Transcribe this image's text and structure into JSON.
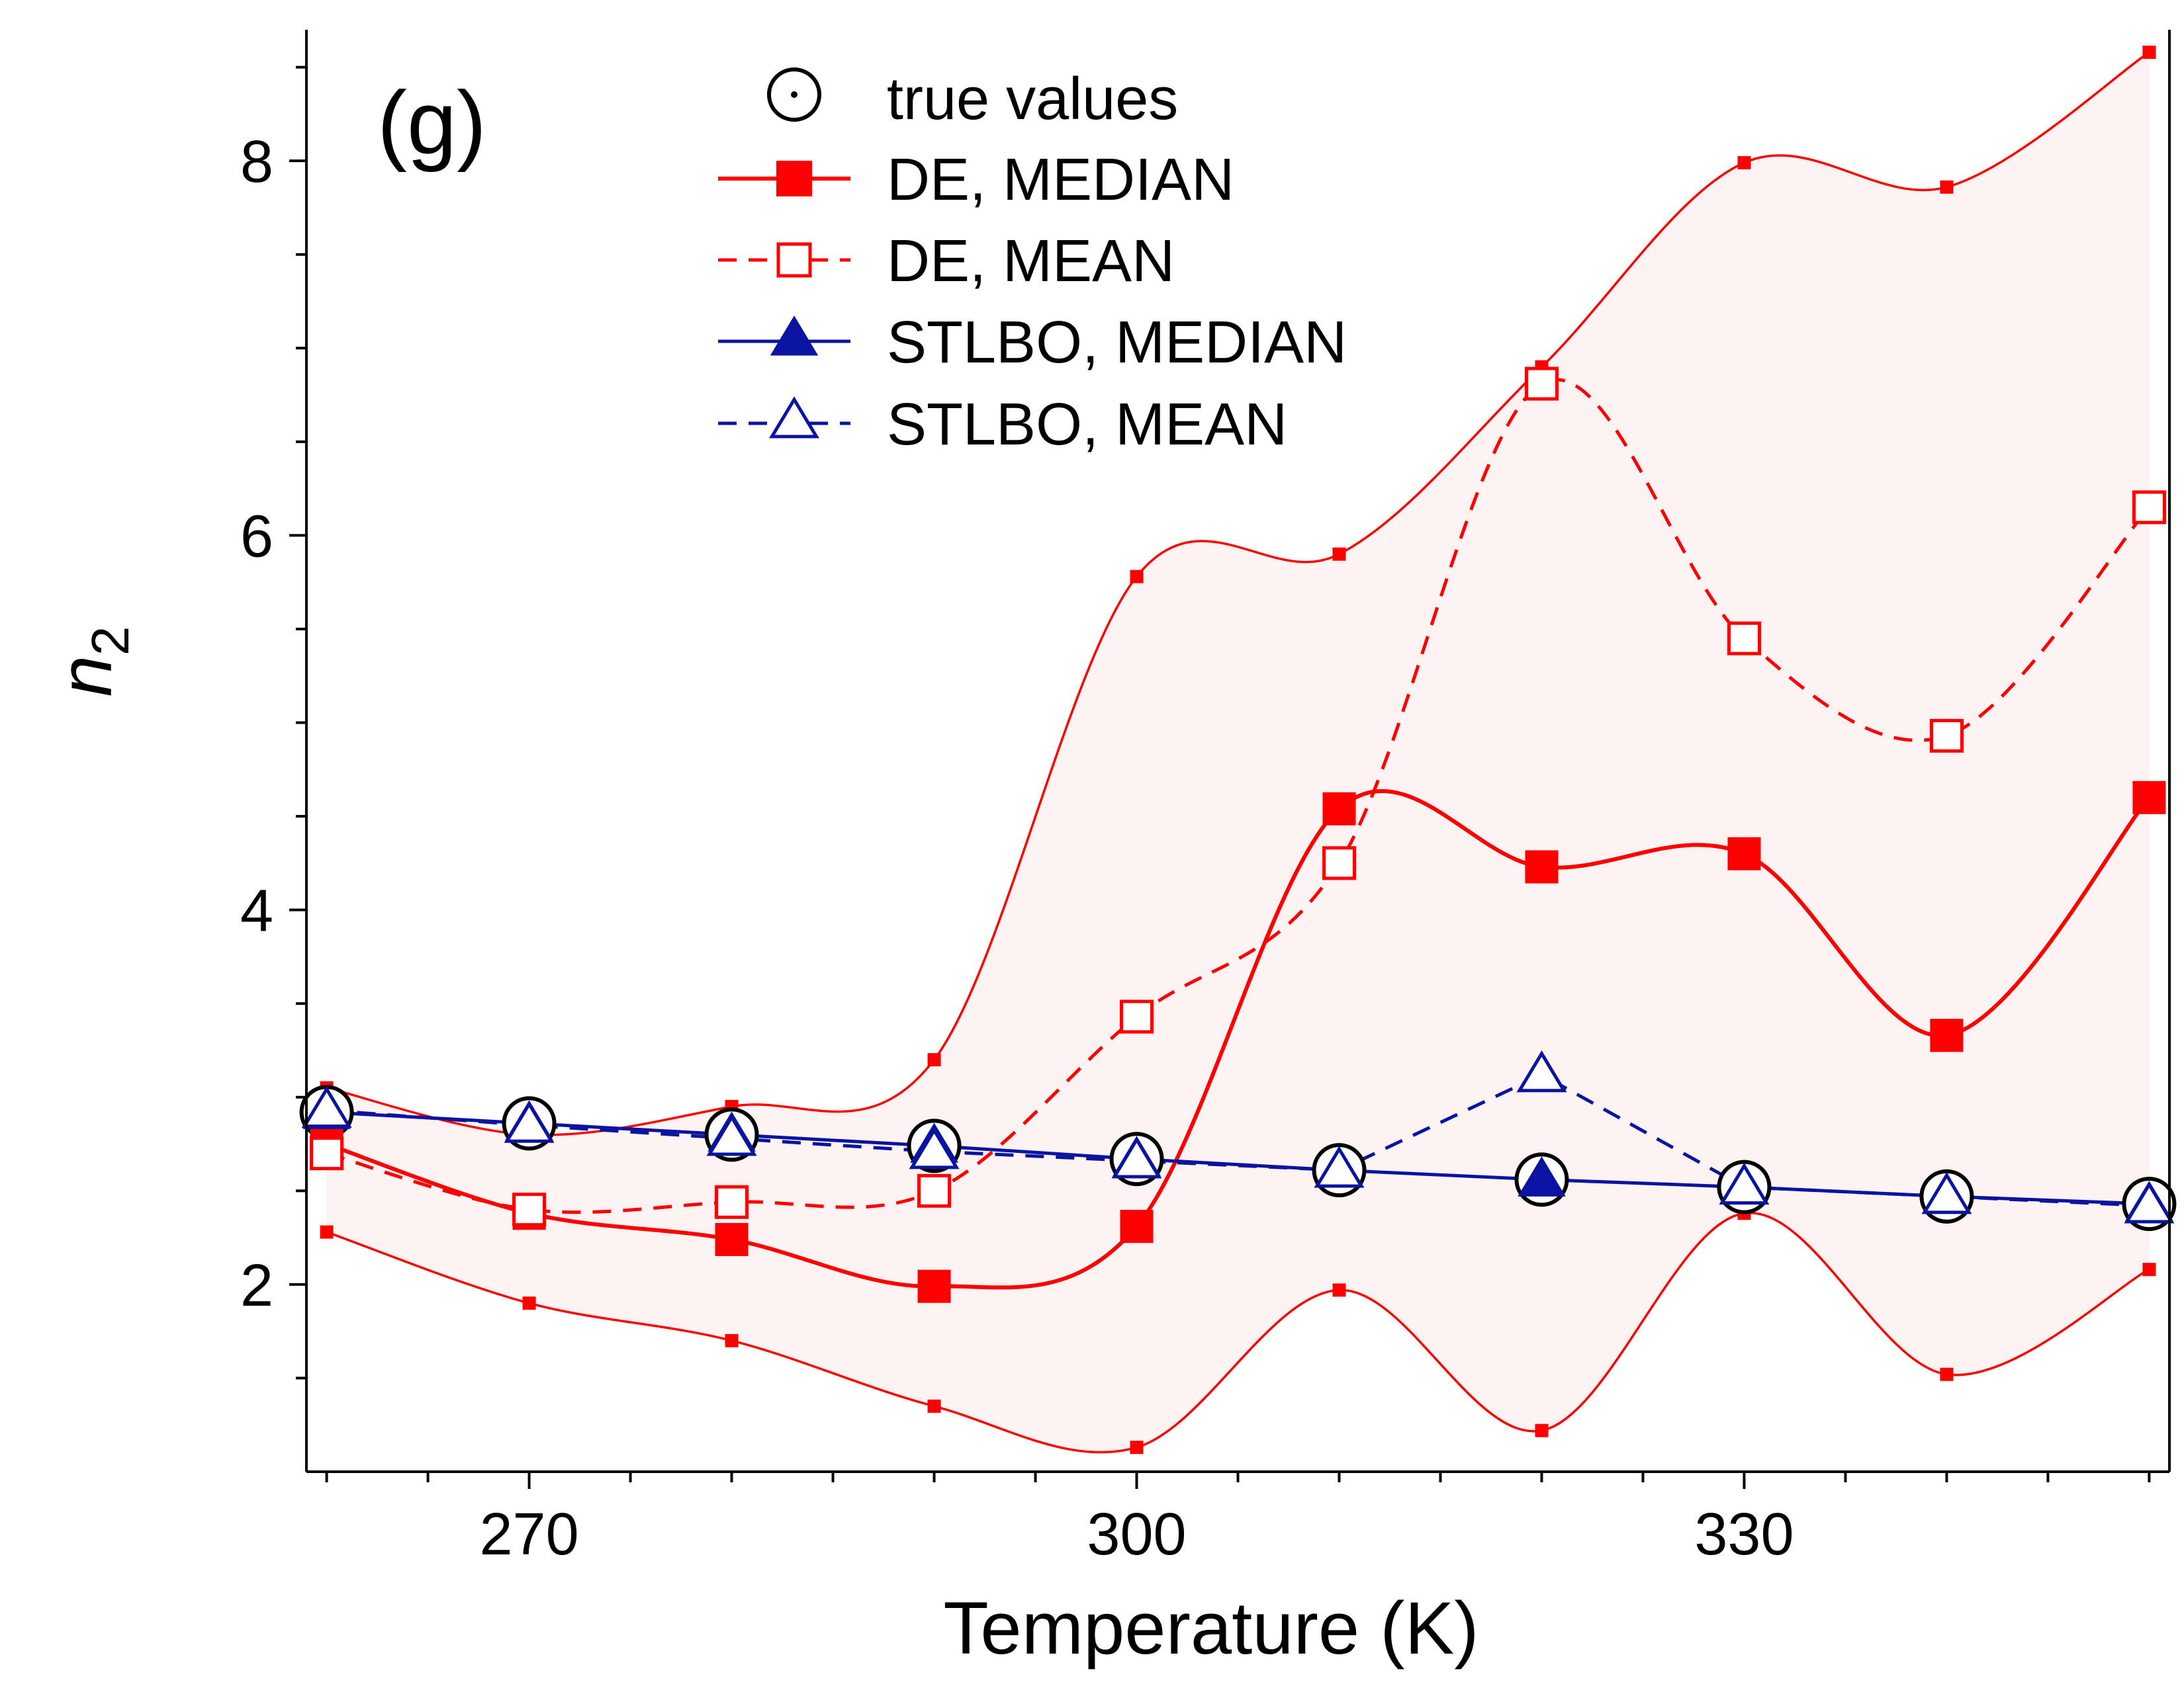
{
  "chart_data": {
    "type": "line",
    "panel_label": "(g)",
    "xlabel": "Temperature (K)",
    "ylabel": "n",
    "ylabel_subscript": "2",
    "xlim": [
      259,
      351
    ],
    "ylim": [
      1.0,
      8.7
    ],
    "x_ticks": [
      270,
      300,
      330
    ],
    "y_ticks": [
      2,
      4,
      6,
      8
    ],
    "x": [
      260,
      270,
      280,
      290,
      300,
      310,
      320,
      330,
      340,
      350
    ],
    "band_upper": [
      3.05,
      2.8,
      2.95,
      3.2,
      5.78,
      5.9,
      6.9,
      7.99,
      7.86,
      8.58
    ],
    "band_lower": [
      2.28,
      1.9,
      1.7,
      1.35,
      1.13,
      1.97,
      1.22,
      2.38,
      1.52,
      2.08
    ],
    "true_values": [
      2.92,
      2.86,
      2.8,
      2.74,
      2.67,
      2.61,
      2.56,
      2.52,
      2.47,
      2.43
    ],
    "series": [
      {
        "name": "DE, MEDIAN",
        "values": [
          2.75,
          2.38,
          2.24,
          1.99,
          2.31,
          4.54,
          4.23,
          4.3,
          3.33,
          4.6
        ]
      },
      {
        "name": "DE, MEAN",
        "values": [
          2.7,
          2.4,
          2.44,
          2.5,
          3.43,
          4.25,
          6.81,
          5.45,
          4.93,
          6.15
        ]
      },
      {
        "name": "STLBO, MEDIAN",
        "values": [
          2.92,
          2.86,
          2.8,
          2.74,
          2.67,
          2.61,
          2.56,
          2.52,
          2.47,
          2.43
        ]
      },
      {
        "name": "STLBO, MEAN",
        "values": [
          2.93,
          2.85,
          2.78,
          2.71,
          2.66,
          2.61,
          3.12,
          2.52,
          2.47,
          2.42
        ]
      }
    ],
    "legend": {
      "placement": "top-center",
      "entries": [
        "true values",
        "DE, MEDIAN",
        "DE, MEAN",
        "STLBO, MEDIAN",
        "STLBO, MEAN"
      ]
    },
    "grid": false,
    "colors": {
      "red": "#ff0000",
      "blue": "#0a14a0",
      "black": "#000000",
      "band_fill": "#fdf3f3"
    }
  }
}
